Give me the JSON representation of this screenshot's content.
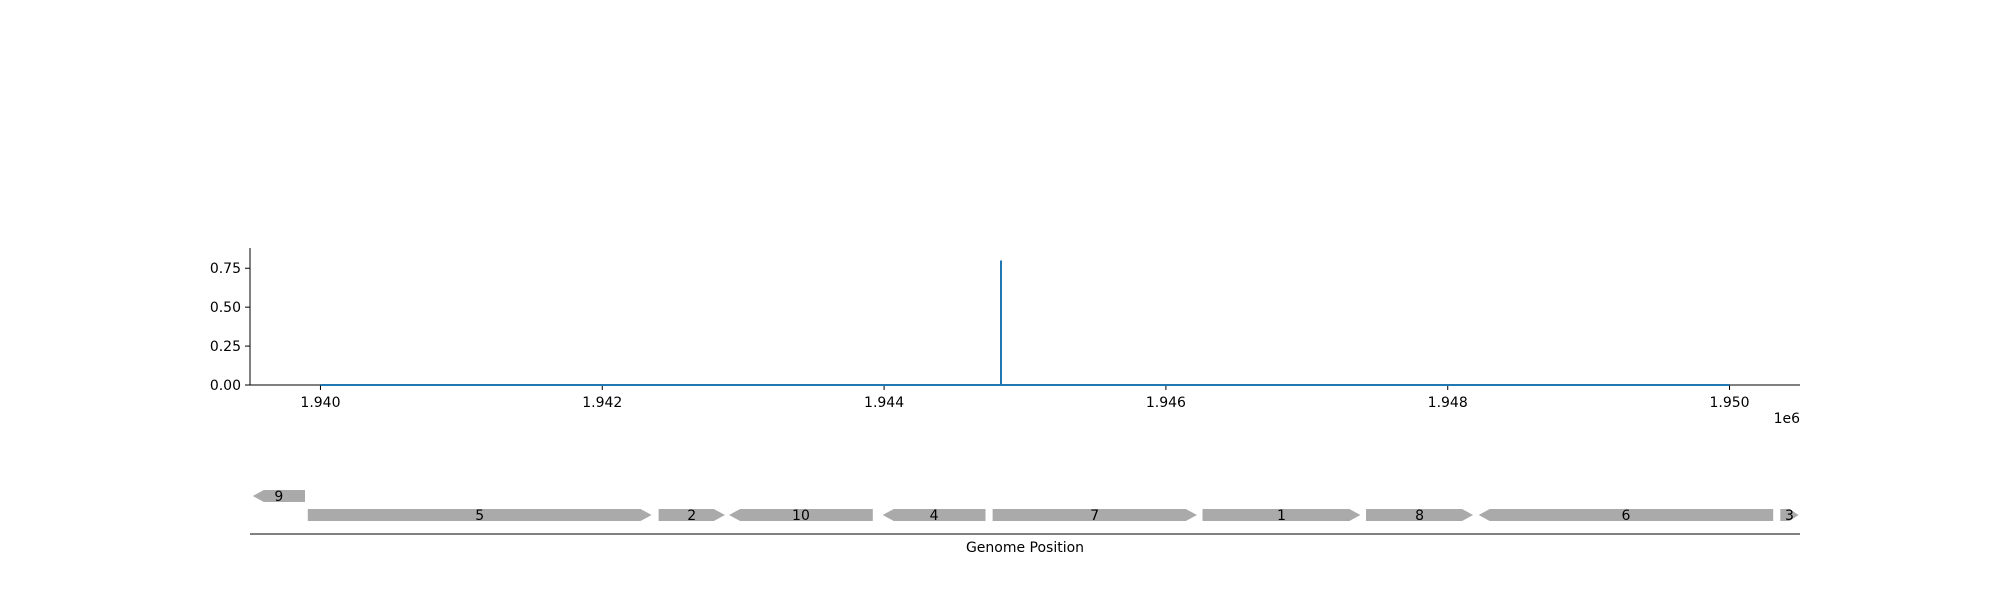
{
  "chart_data": [
    {
      "type": "line",
      "xlim": [
        1939500,
        1950500
      ],
      "ylim": [
        0,
        0.88
      ],
      "x_ticks": [
        1940000,
        1942000,
        1944000,
        1946000,
        1948000,
        1950000
      ],
      "x_tick_labels": [
        "1.940",
        "1.942",
        "1.944",
        "1.946",
        "1.948",
        "1.950"
      ],
      "x_offset_label": "1e6",
      "y_ticks": [
        0,
        0.25,
        0.5,
        0.75
      ],
      "y_tick_labels": [
        "0.00",
        "0.25",
        "0.50",
        "0.75"
      ],
      "grid": false,
      "series": [
        {
          "color": "#1f77b4",
          "x": [
            1940000,
            1944830,
            1944830,
            1944830,
            1944830,
            1950000
          ],
          "y": [
            0,
            0,
            0.8,
            0.8,
            0,
            0
          ]
        }
      ]
    },
    {
      "type": "gene-track",
      "xlim": [
        1939500,
        1950500
      ],
      "xlabel": "Genome Position",
      "color": "#aaaaaa",
      "genes": [
        {
          "label": "9",
          "start": 1939520,
          "end": 1939890,
          "strand": "-",
          "row": 1
        },
        {
          "label": "5",
          "start": 1939910,
          "end": 1942350,
          "strand": "+",
          "row": 0
        },
        {
          "label": "2",
          "start": 1942400,
          "end": 1942870,
          "strand": "+",
          "row": 0
        },
        {
          "label": "10",
          "start": 1942900,
          "end": 1943920,
          "strand": "-",
          "row": 0
        },
        {
          "label": "4",
          "start": 1943990,
          "end": 1944720,
          "strand": "-",
          "row": 0
        },
        {
          "label": "7",
          "start": 1944770,
          "end": 1946220,
          "strand": "+",
          "row": 0
        },
        {
          "label": "1",
          "start": 1946260,
          "end": 1947380,
          "strand": "+",
          "row": 0
        },
        {
          "label": "8",
          "start": 1947420,
          "end": 1948180,
          "strand": "+",
          "row": 0
        },
        {
          "label": "6",
          "start": 1948220,
          "end": 1950310,
          "strand": "-",
          "row": 0
        },
        {
          "label": "3",
          "start": 1950360,
          "end": 1950490,
          "strand": "+",
          "row": 0
        }
      ]
    }
  ]
}
